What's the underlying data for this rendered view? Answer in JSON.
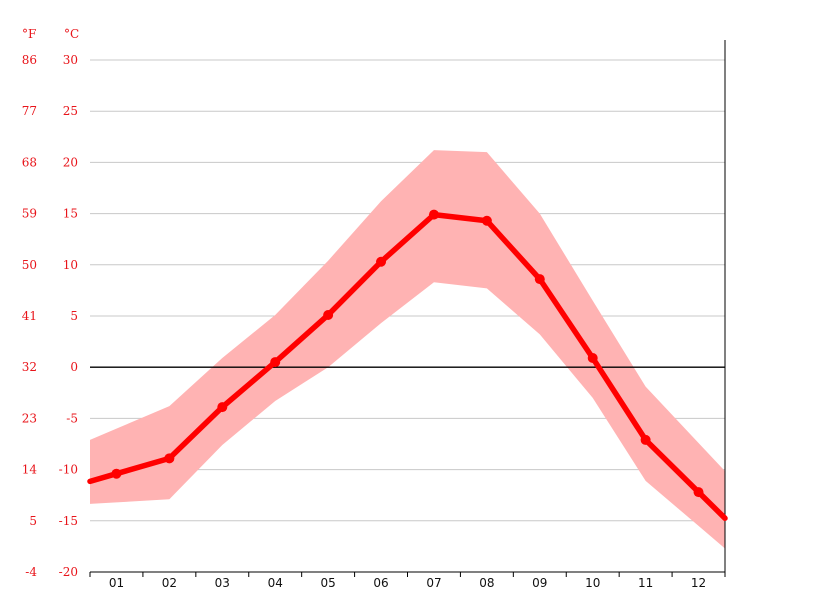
{
  "chart_data": {
    "type": "line",
    "title": "",
    "xlabel": "",
    "ylabel": "",
    "unit_f": "°F",
    "unit_c": "°C",
    "categories": [
      "01",
      "02",
      "03",
      "04",
      "05",
      "06",
      "07",
      "08",
      "09",
      "10",
      "11",
      "12"
    ],
    "y_ticks_c": [
      "30",
      "25",
      "20",
      "15",
      "10",
      "5",
      "0",
      "-5",
      "-10",
      "-15",
      "-20"
    ],
    "y_ticks_f": [
      "86",
      "77",
      "68",
      "59",
      "50",
      "41",
      "32",
      "23",
      "14",
      "5",
      "-4"
    ],
    "ylim": [
      -20,
      30
    ],
    "grid": true,
    "series": [
      {
        "name": "",
        "values": [
          -10.4,
          -8.9,
          -3.9,
          0.5,
          5.1,
          10.3,
          14.9,
          14.3,
          8.6,
          0.9,
          -7.1,
          -12.2
        ]
      }
    ],
    "range_band": {
      "upper": [
        -6.0,
        -3.8,
        0.9,
        5.1,
        10.4,
        16.2,
        21.2,
        21.0,
        15.0,
        6.5,
        -1.9,
        -7.4
      ],
      "lower": [
        -13.2,
        -12.9,
        -7.6,
        -3.3,
        0.0,
        4.3,
        8.3,
        7.7,
        3.2,
        -3.0,
        -11.1,
        -15.5
      ]
    },
    "colors": {
      "line": "#ff0000",
      "band": "#ffb3b3",
      "grid": "#c8c8c8",
      "zero": "#000000",
      "tick_label": "#e8141a"
    }
  }
}
